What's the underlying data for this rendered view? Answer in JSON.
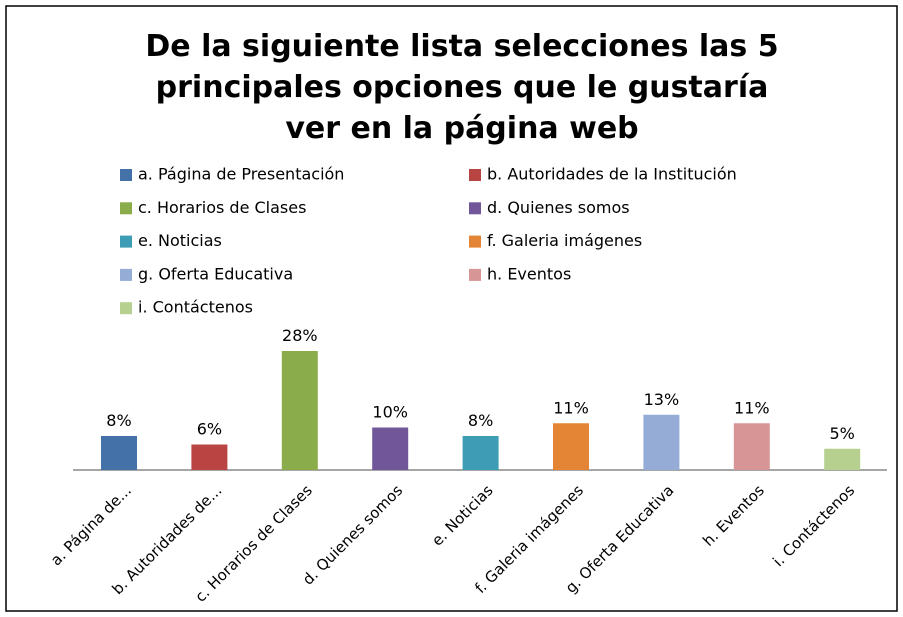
{
  "chart_data": {
    "type": "bar",
    "title": [
      "De la siguiente lista selecciones las 5",
      "principales opciones que le gustaría",
      "ver en la página web"
    ],
    "legend": [
      "a. Página de Presentación",
      "b. Autoridades de la Institución",
      "c. Horarios de Clases",
      "d. Quienes somos",
      "e. Noticias",
      "f. Galeria imágenes",
      "g. Oferta Educativa",
      "h. Eventos",
      "i. Contáctenos"
    ],
    "categories": [
      "a. Página de...",
      "b. Autoridades de...",
      "c. Horarios de Clases",
      "d. Quienes somos",
      "e. Noticias",
      "f. Galeria imágenes",
      "g. Oferta Educativa",
      "h. Eventos",
      "i. Contáctenos"
    ],
    "values": [
      8,
      6,
      28,
      10,
      8,
      11,
      13,
      11,
      5
    ],
    "value_labels": [
      "8%",
      "6%",
      "28%",
      "10%",
      "8%",
      "11%",
      "13%",
      "11%",
      "5%"
    ],
    "colors": [
      "#4472a8",
      "#b84542",
      "#8aac4b",
      "#71579a",
      "#3d9db4",
      "#e38534",
      "#95acd6",
      "#d79595",
      "#b6d08f"
    ]
  }
}
